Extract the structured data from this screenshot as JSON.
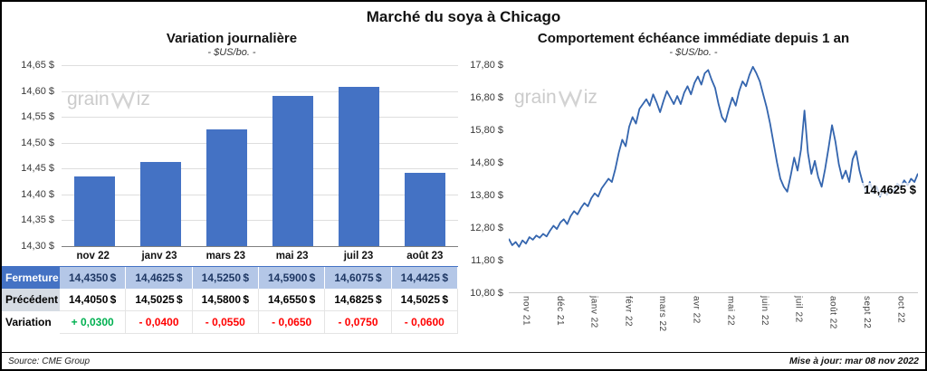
{
  "title": "Marché du soya à Chicago",
  "watermark": {
    "prefix": "grain",
    "suffix": "iz"
  },
  "colors": {
    "bar": "#4472C4",
    "line": "#3465AE",
    "positive": "#00B050",
    "negative": "#FF0000",
    "fermeture_header": "#4472C4",
    "fermeture_cell": "#B4C7E7",
    "precedent_label": "#D6DCE4"
  },
  "chart_data": [
    {
      "type": "bar",
      "title": "Variation  journalière",
      "subtitle": "- $US/bo. -",
      "categories": [
        "nov 22",
        "janv 23",
        "mars 23",
        "mai 23",
        "juil 23",
        "août 23"
      ],
      "values": [
        14.435,
        14.4625,
        14.525,
        14.59,
        14.6075,
        14.4425
      ],
      "ylim": [
        14.3,
        14.65
      ],
      "ytick_step": 0.05,
      "yticks": [
        "14,65 $",
        "14,60 $",
        "14,55 $",
        "14,50 $",
        "14,45 $",
        "14,40 $",
        "14,35 $",
        "14,30 $"
      ],
      "grid": true,
      "xlabel": "",
      "ylabel": ""
    },
    {
      "type": "line",
      "title": "Comportement  échéance  immédiate  depuis  1 an",
      "subtitle": "- $US/bo. -",
      "x_labels": [
        "nov 21",
        "déc 21",
        "janv 22",
        "févr 22",
        "mars 22",
        "avr 22",
        "mai 22",
        "juin 22",
        "juil 22",
        "août 22",
        "sept 22",
        "oct 22"
      ],
      "values": [
        12.45,
        12.25,
        12.35,
        12.2,
        12.4,
        12.3,
        12.5,
        12.42,
        12.55,
        12.48,
        12.6,
        12.52,
        12.7,
        12.85,
        12.75,
        12.95,
        13.05,
        12.9,
        13.15,
        13.3,
        13.2,
        13.4,
        13.55,
        13.45,
        13.7,
        13.85,
        13.75,
        14.0,
        14.15,
        14.3,
        14.2,
        14.6,
        15.1,
        15.5,
        15.3,
        15.9,
        16.2,
        16.0,
        16.45,
        16.6,
        16.75,
        16.55,
        16.9,
        16.65,
        16.35,
        16.7,
        17.0,
        16.8,
        16.6,
        16.85,
        16.6,
        16.95,
        17.15,
        16.9,
        17.25,
        17.45,
        17.2,
        17.55,
        17.65,
        17.35,
        17.1,
        16.6,
        16.2,
        16.05,
        16.45,
        16.8,
        16.55,
        17.0,
        17.3,
        17.15,
        17.5,
        17.75,
        17.55,
        17.3,
        16.9,
        16.5,
        16.0,
        15.4,
        14.8,
        14.3,
        14.05,
        13.9,
        14.4,
        14.95,
        14.55,
        15.2,
        16.4,
        15.1,
        14.45,
        14.85,
        14.35,
        14.05,
        14.6,
        15.25,
        15.95,
        15.45,
        14.75,
        14.3,
        14.55,
        14.2,
        14.9,
        15.15,
        14.55,
        14.15,
        13.9,
        14.2,
        13.85,
        14.05,
        13.75,
        13.95,
        13.8,
        14.0,
        13.9,
        14.15,
        14.05,
        14.25,
        14.1,
        14.3,
        14.2,
        14.4625
      ],
      "ylim": [
        10.8,
        17.8
      ],
      "ytick_step": 1.0,
      "yticks": [
        "17,80 $",
        "16,80 $",
        "15,80 $",
        "14,80 $",
        "13,80 $",
        "12,80 $",
        "11,80 $",
        "10,80 $"
      ],
      "grid": false,
      "annotation": "14,4625 $",
      "legend": "none"
    }
  ],
  "table": {
    "rows": [
      {
        "label": "Fermeture",
        "unit": "$",
        "values": [
          "14,4350",
          "14,4625",
          "14,5250",
          "14,5900",
          "14,6075",
          "14,4425"
        ]
      },
      {
        "label": "Précédent",
        "unit": "$",
        "values": [
          "14,4050",
          "14,5025",
          "14,5800",
          "14,6550",
          "14,6825",
          "14,5025"
        ]
      },
      {
        "label": "Variation",
        "unit": "",
        "values": [
          "+ 0,0300",
          "- 0,0400",
          "- 0,0550",
          "- 0,0650",
          "- 0,0750",
          "- 0,0600"
        ]
      }
    ]
  },
  "footer": {
    "source": "Source: CME Group",
    "updated": "Mise à jour: mar 08 nov 2022"
  }
}
